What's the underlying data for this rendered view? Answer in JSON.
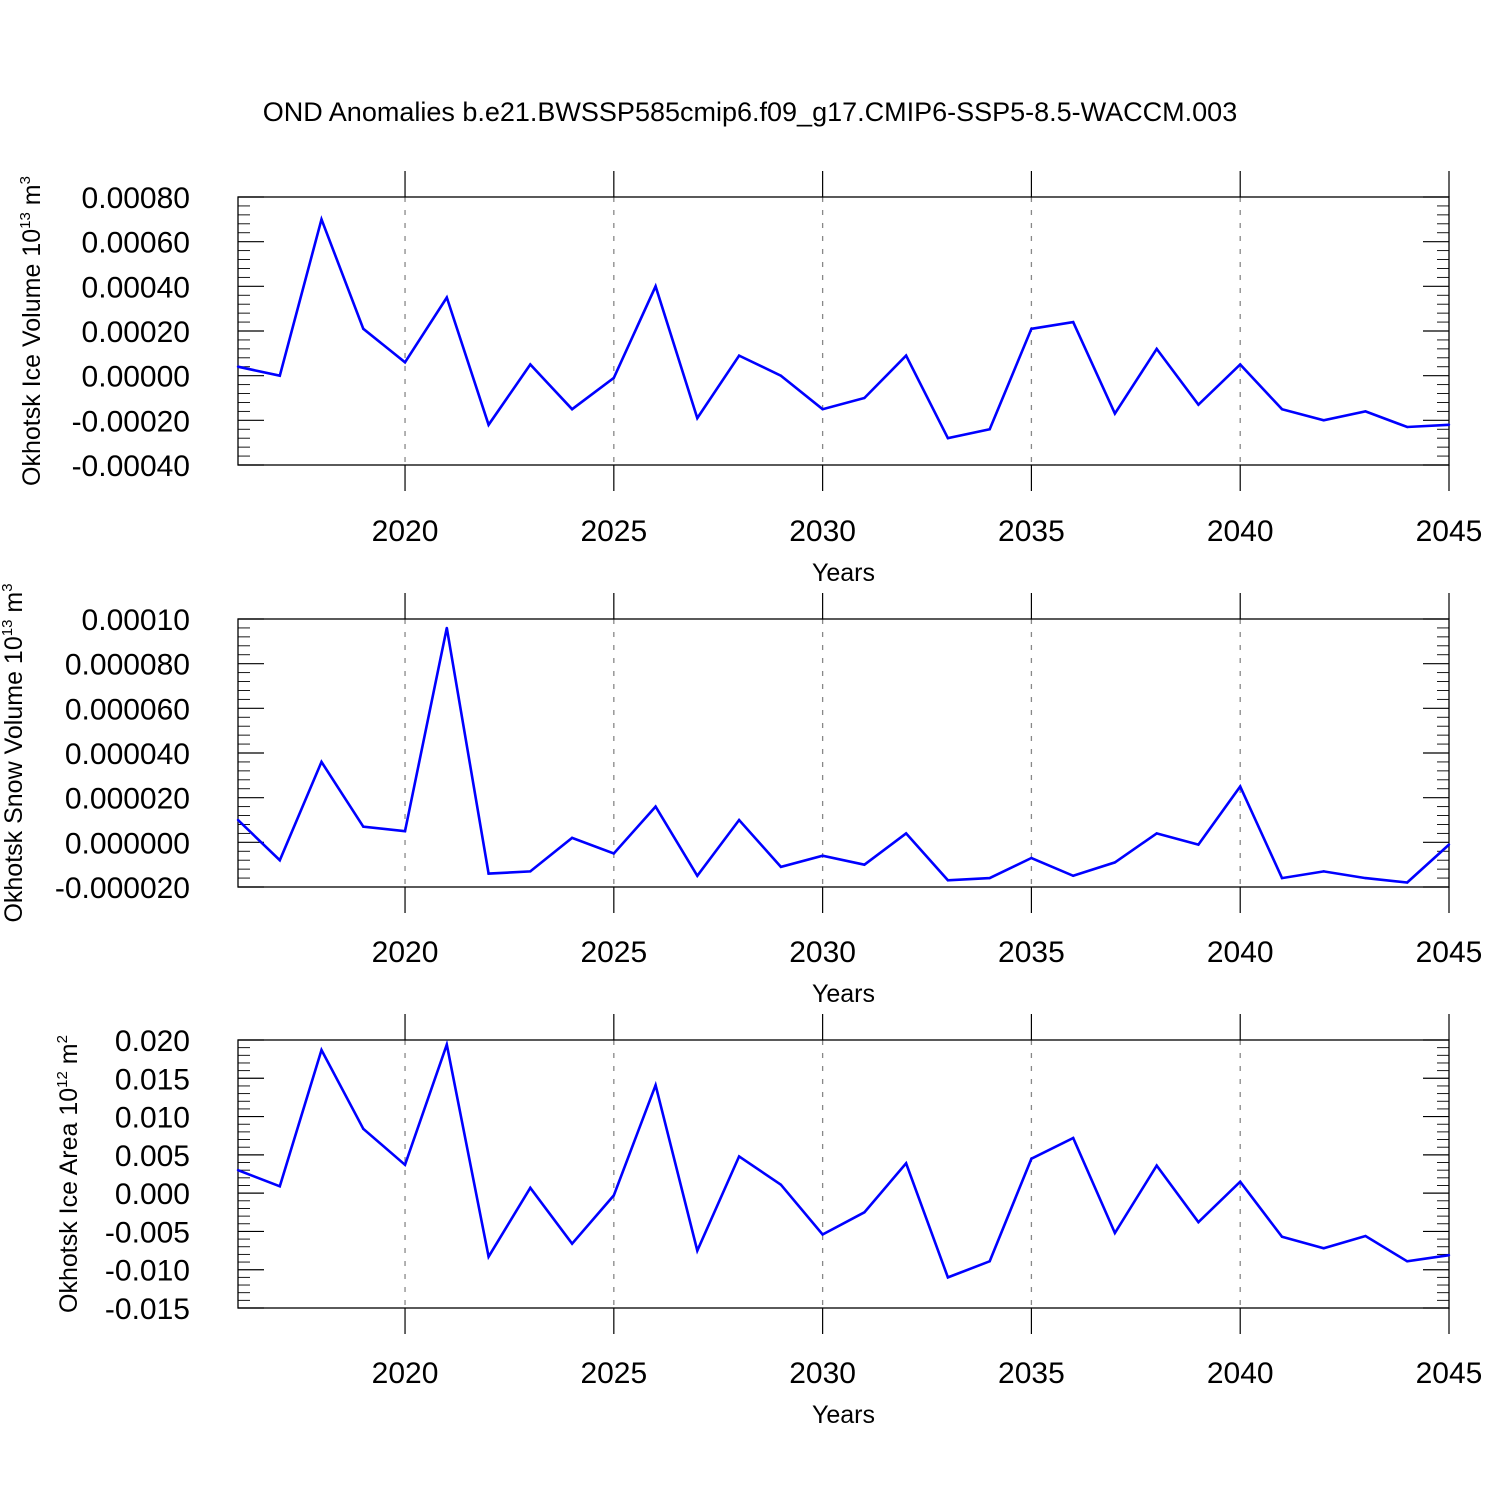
{
  "chart_data": {
    "title": "OND Anomalies b.e21.BWSSP585cmip6.f09_g17.CMIP6-SSP5-8.5-WACCM.003",
    "panels": [
      {
        "type": "line",
        "ylabel_prefix": "Okhotsk Ice Volume 10",
        "ylabel_exp": "13",
        "ylabel_unit": " m",
        "ylabel_unit_exp": "3",
        "xlabel": "Years",
        "xlim": [
          2016,
          2045
        ],
        "ylim": [
          -0.0004,
          0.0008
        ],
        "yticks": [
          0.0008,
          0.0006,
          0.0004,
          0.0002,
          0.0,
          -0.0002,
          -0.0004
        ],
        "ytick_labels": [
          "0.00080",
          "0.00060",
          "0.00040",
          "0.00020",
          "0.00000",
          "-0.00020",
          "-0.00040"
        ],
        "xticks": [
          2020,
          2025,
          2030,
          2035,
          2040,
          2045
        ],
        "xtick_labels": [
          "2020",
          "2025",
          "2030",
          "2035",
          "2040",
          "2045"
        ],
        "grid": "vertical dashed at major x ticks",
        "color": "#0000ff",
        "x": [
          2016,
          2017,
          2018,
          2019,
          2020,
          2021,
          2022,
          2023,
          2024,
          2025,
          2026,
          2027,
          2028,
          2029,
          2030,
          2031,
          2032,
          2033,
          2034,
          2035,
          2036,
          2037,
          2038,
          2039,
          2040,
          2041,
          2042,
          2043,
          2044,
          2045
        ],
        "values": [
          4e-05,
          0.0,
          0.0007,
          0.00021,
          6e-05,
          0.00035,
          -0.00022,
          5e-05,
          -0.00015,
          -1e-05,
          0.0004,
          -0.00019,
          9e-05,
          0.0,
          -0.00015,
          -0.0001,
          9e-05,
          -0.00028,
          -0.00024,
          0.00021,
          0.00024,
          -0.00017,
          0.00012,
          -0.00013,
          5e-05,
          -0.00015,
          -0.0002,
          -0.00016,
          -0.00023,
          -0.00022
        ]
      },
      {
        "type": "line",
        "ylabel_prefix": "Okhotsk Snow Volume 10",
        "ylabel_exp": "13",
        "ylabel_unit": " m",
        "ylabel_unit_exp": "3",
        "xlabel": "Years",
        "xlim": [
          2016,
          2045
        ],
        "ylim": [
          -2e-05,
          0.0001
        ],
        "yticks": [
          0.0001,
          8e-05,
          6e-05,
          4e-05,
          2e-05,
          0.0,
          -2e-05
        ],
        "ytick_labels": [
          "0.00010",
          "0.000080",
          "0.000060",
          "0.000040",
          "0.000020",
          "0.000000",
          "-0.000020"
        ],
        "xticks": [
          2020,
          2025,
          2030,
          2035,
          2040,
          2045
        ],
        "xtick_labels": [
          "2020",
          "2025",
          "2030",
          "2035",
          "2040",
          "2045"
        ],
        "grid": "vertical dashed at major x ticks",
        "color": "#0000ff",
        "x": [
          2016,
          2017,
          2018,
          2019,
          2020,
          2021,
          2022,
          2023,
          2024,
          2025,
          2026,
          2027,
          2028,
          2029,
          2030,
          2031,
          2032,
          2033,
          2034,
          2035,
          2036,
          2037,
          2038,
          2039,
          2040,
          2041,
          2042,
          2043,
          2044,
          2045
        ],
        "values": [
          1e-05,
          -8e-06,
          3.6e-05,
          7e-06,
          5e-06,
          9.6e-05,
          -1.4e-05,
          -1.3e-05,
          2e-06,
          -5e-06,
          1.6e-05,
          -1.5e-05,
          1e-05,
          -1.1e-05,
          -6e-06,
          -1e-05,
          4e-06,
          -1.7e-05,
          -1.6e-05,
          -7e-06,
          -1.5e-05,
          -9e-06,
          4e-06,
          -1e-06,
          2.5e-05,
          -1.6e-05,
          -1.3e-05,
          -1.6e-05,
          -1.8e-05,
          -1e-06
        ]
      },
      {
        "type": "line",
        "ylabel_prefix": "Okhotsk Ice Area 10",
        "ylabel_exp": "12",
        "ylabel_unit": " m",
        "ylabel_unit_exp": "2",
        "xlabel": "Years",
        "xlim": [
          2016,
          2045
        ],
        "ylim": [
          -0.015,
          0.02
        ],
        "yticks": [
          0.02,
          0.015,
          0.01,
          0.005,
          0.0,
          -0.005,
          -0.01,
          -0.015
        ],
        "ytick_labels": [
          "0.020",
          "0.015",
          "0.010",
          "0.005",
          "0.000",
          "-0.005",
          "-0.010",
          "-0.015"
        ],
        "xticks": [
          2020,
          2025,
          2030,
          2035,
          2040,
          2045
        ],
        "xtick_labels": [
          "2020",
          "2025",
          "2030",
          "2035",
          "2040",
          "2045"
        ],
        "grid": "vertical dashed at major x ticks",
        "color": "#0000ff",
        "x": [
          2016,
          2017,
          2018,
          2019,
          2020,
          2021,
          2022,
          2023,
          2024,
          2025,
          2026,
          2027,
          2028,
          2029,
          2030,
          2031,
          2032,
          2033,
          2034,
          2035,
          2036,
          2037,
          2038,
          2039,
          2040,
          2041,
          2042,
          2043,
          2044,
          2045
        ],
        "values": [
          0.003,
          0.0009,
          0.0187,
          0.0084,
          0.0037,
          0.0194,
          -0.0083,
          0.0007,
          -0.0066,
          -0.0003,
          0.0141,
          -0.0075,
          0.0048,
          0.0011,
          -0.0054,
          -0.0025,
          0.0039,
          -0.011,
          -0.0089,
          0.0045,
          0.0072,
          -0.0052,
          0.0036,
          -0.0038,
          0.0015,
          -0.0057,
          -0.0072,
          -0.0056,
          -0.0089,
          -0.0081
        ]
      }
    ]
  }
}
